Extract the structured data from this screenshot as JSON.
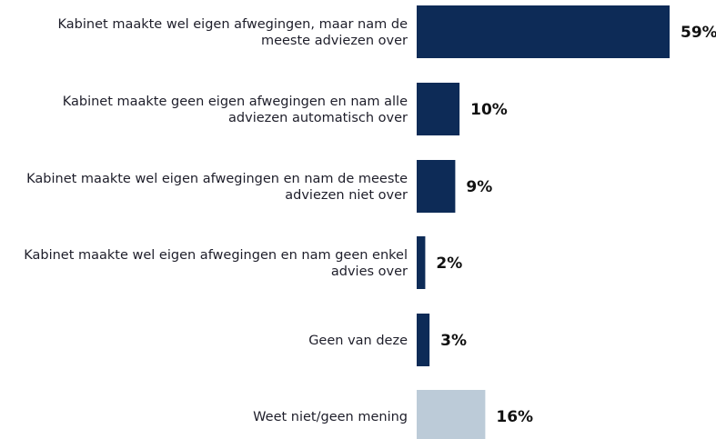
{
  "chart_data": {
    "type": "bar",
    "orientation": "horizontal",
    "categories": [
      [
        "Kabinet maakte wel eigen afwegingen, maar nam de",
        "meeste adviezen over"
      ],
      [
        "Kabinet maakte geen eigen afwegingen en nam alle",
        "adviezen automatisch over"
      ],
      [
        "Kabinet maakte wel eigen afwegingen en nam de meeste",
        "adviezen niet over"
      ],
      [
        "Kabinet maakte wel eigen afwegingen en nam geen enkel",
        "advies over"
      ],
      [
        "Geen van deze"
      ],
      [
        "Weet niet/geen mening"
      ]
    ],
    "values": [
      59,
      10,
      9,
      2,
      3,
      16
    ],
    "value_labels": [
      "59%",
      "10%",
      "9%",
      "2%",
      "3%",
      "16%"
    ],
    "colors": [
      "#0d2b57",
      "#0d2b57",
      "#0d2b57",
      "#0d2b57",
      "#0d2b57",
      "#bccbd8"
    ],
    "xlim": [
      0,
      59
    ],
    "grid": false,
    "legend": "none"
  }
}
